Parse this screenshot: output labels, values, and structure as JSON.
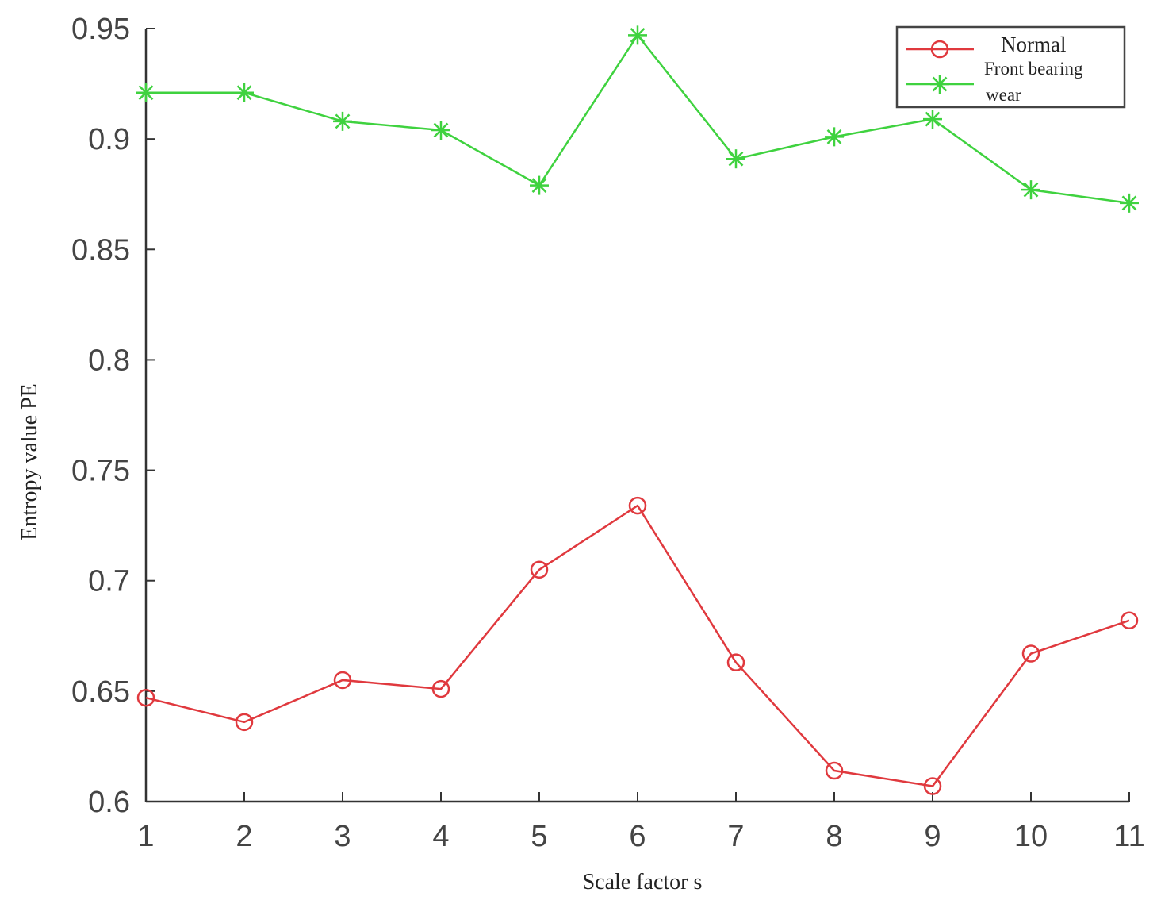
{
  "chart_data": {
    "type": "line",
    "xlabel": "Scale factor s",
    "ylabel": "Entropy value PE",
    "x": [
      1,
      2,
      3,
      4,
      5,
      6,
      7,
      8,
      9,
      10,
      11
    ],
    "xlim": [
      1,
      11
    ],
    "ylim": [
      0.6,
      0.95
    ],
    "xticks": [
      "1",
      "2",
      "3",
      "4",
      "5",
      "6",
      "7",
      "8",
      "9",
      "10",
      "11"
    ],
    "yticks": [
      "0.6",
      "0.65",
      "0.7",
      "0.75",
      "0.8",
      "0.85",
      "0.9",
      "0.95"
    ],
    "grid": false,
    "legend_position": "top-right",
    "series": [
      {
        "name": "Normal",
        "color": "#e0393e",
        "marker": "circle",
        "values": [
          0.647,
          0.636,
          0.655,
          0.651,
          0.705,
          0.734,
          0.663,
          0.614,
          0.607,
          0.667,
          0.682
        ]
      },
      {
        "name": "Front bearing wear",
        "legend_lines": [
          "Front bearing",
          "wear"
        ],
        "color": "#3fd23f",
        "marker": "star",
        "values": [
          0.921,
          0.921,
          0.908,
          0.904,
          0.879,
          0.947,
          0.891,
          0.901,
          0.909,
          0.877,
          0.871
        ]
      }
    ]
  }
}
